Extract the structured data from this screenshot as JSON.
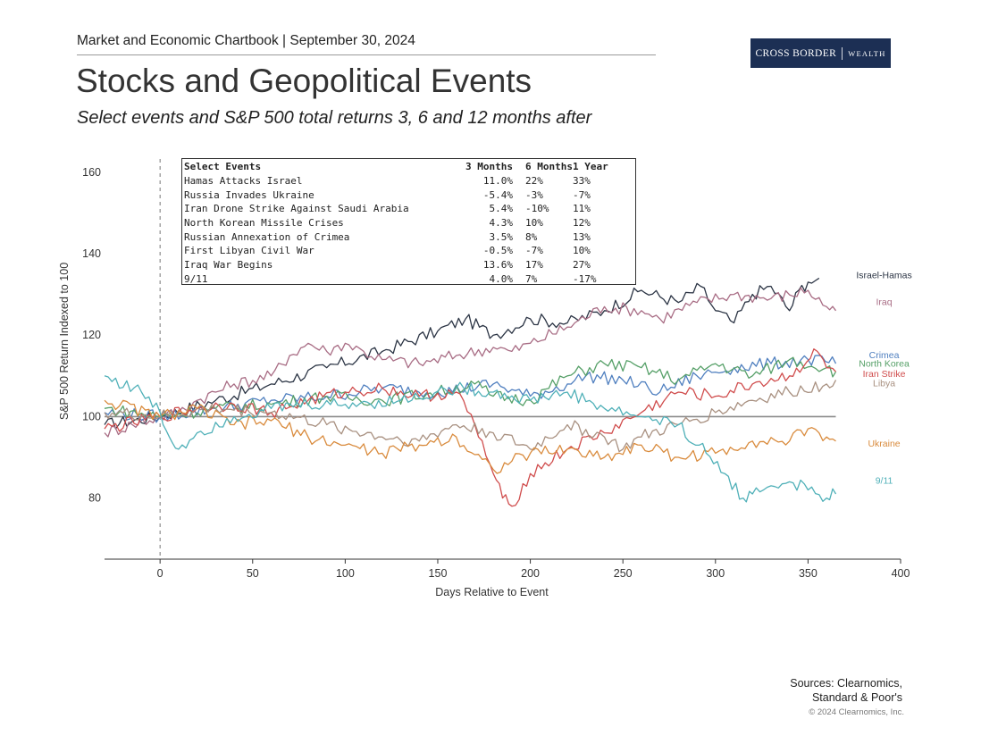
{
  "header": {
    "chartbook": "Market and Economic Chartbook | September 30, 2024",
    "logo_main": "CROSS BORDER",
    "logo_sub": "WEALTH",
    "title": "Stocks and Geopolitical Events",
    "subtitle": "Select events and S&P 500 total returns 3, 6 and 12 months after"
  },
  "footer": {
    "source_line1": "Sources: Clearnomics,",
    "source_line2": "Standard & Poor's",
    "copyright": "© 2024 Clearnomics, Inc."
  },
  "events_table": {
    "headers": [
      "Select Events",
      "3 Months",
      "6 Months",
      "1 Year"
    ],
    "rows": [
      [
        "Hamas Attacks Israel",
        "11.0%",
        "22%",
        "33%"
      ],
      [
        "Russia Invades Ukraine",
        "-5.4%",
        "-3%",
        "-7%"
      ],
      [
        "Iran Drone Strike Against Saudi Arabia",
        "5.4%",
        "-10%",
        "11%"
      ],
      [
        "North Korean Missile Crises",
        "4.3%",
        "10%",
        "12%"
      ],
      [
        "Russian Annexation of Crimea",
        "3.5%",
        "8%",
        "13%"
      ],
      [
        "First Libyan Civil War",
        "-0.5%",
        "-7%",
        "10%"
      ],
      [
        "Iraq War Begins",
        "13.6%",
        "17%",
        "27%"
      ],
      [
        "9/11",
        "4.0%",
        "7%",
        "-17%"
      ]
    ]
  },
  "chart_data": {
    "type": "line",
    "title": "Stocks and Geopolitical Events",
    "xlabel": "Days Relative to Event",
    "ylabel": "S&P 500 Return Indexed to 100",
    "xlim": [
      -30,
      400
    ],
    "ylim": [
      65,
      165
    ],
    "xticks": [
      0,
      50,
      100,
      150,
      200,
      250,
      300,
      350,
      400
    ],
    "yticks": [
      80,
      100,
      120,
      140,
      160
    ],
    "reference_line_y": 100,
    "event_line_x": 0,
    "series": [
      {
        "name": "Israel-Hamas",
        "color": "#2b3444",
        "x": [
          -30,
          0,
          30,
          60,
          90,
          120,
          150,
          165,
          180,
          200,
          220,
          240,
          260,
          280,
          292,
          300,
          310,
          320,
          330,
          340,
          345,
          350,
          356
        ],
        "y": [
          98,
          100,
          104,
          108,
          112,
          116,
          121,
          124,
          120,
          124,
          123,
          126,
          131,
          128,
          132,
          126,
          123,
          130,
          132,
          126,
          131,
          133,
          134
        ]
      },
      {
        "name": "Iraq",
        "color": "#a86c84",
        "x": [
          -30,
          -15,
          0,
          10,
          20,
          40,
          60,
          70,
          80,
          90,
          100,
          110,
          120,
          140,
          160,
          180,
          190,
          200,
          220,
          240,
          260,
          270,
          290,
          310,
          330,
          350,
          360,
          365
        ],
        "y": [
          96,
          98,
          100,
          101,
          104,
          108,
          110,
          115,
          118,
          116,
          118,
          116,
          114,
          113,
          115,
          117,
          116,
          118,
          122,
          127,
          126,
          124,
          128,
          130,
          129,
          131,
          127,
          126
        ]
      },
      {
        "name": "Crimea",
        "color": "#4f7fbf",
        "x": [
          -30,
          0,
          30,
          60,
          90,
          120,
          150,
          180,
          200,
          220,
          230,
          250,
          270,
          290,
          310,
          330,
          350,
          365
        ],
        "y": [
          101,
          100,
          102,
          104,
          105,
          107,
          106,
          108,
          105,
          108,
          110,
          109,
          106,
          110,
          112,
          113,
          114,
          113
        ]
      },
      {
        "name": "North Korea",
        "color": "#56a068",
        "x": [
          -30,
          0,
          30,
          60,
          90,
          120,
          150,
          170,
          180,
          200,
          220,
          240,
          260,
          280,
          300,
          320,
          340,
          360,
          365
        ],
        "y": [
          102,
          100,
          102,
          103,
          105,
          104,
          106,
          108,
          105,
          104,
          110,
          113,
          112,
          109,
          113,
          110,
          114,
          112,
          111
        ]
      },
      {
        "name": "Iran Strike",
        "color": "#d04d4d",
        "x": [
          -30,
          0,
          20,
          40,
          60,
          80,
          100,
          120,
          140,
          160,
          170,
          180,
          185,
          190,
          200,
          220,
          240,
          260,
          280,
          300,
          320,
          340,
          355,
          360,
          365
        ],
        "y": [
          97,
          100,
          102,
          103,
          101,
          104,
          106,
          107,
          105,
          106,
          98,
          86,
          80,
          78,
          86,
          92,
          96,
          101,
          106,
          105,
          108,
          110,
          116,
          112,
          111
        ]
      },
      {
        "name": "Libya",
        "color": "#a89080",
        "x": [
          -30,
          0,
          30,
          60,
          90,
          120,
          140,
          160,
          180,
          200,
          220,
          240,
          250,
          260,
          280,
          300,
          320,
          340,
          360,
          365
        ],
        "y": [
          101,
          100,
          102,
          101,
          98,
          95,
          94,
          98,
          96,
          92,
          98,
          95,
          92,
          95,
          98,
          101,
          104,
          106,
          108,
          109
        ]
      },
      {
        "name": "Ukraine",
        "color": "#d98b3d",
        "x": [
          -30,
          0,
          20,
          40,
          60,
          80,
          100,
          120,
          140,
          160,
          180,
          200,
          220,
          240,
          260,
          280,
          300,
          320,
          340,
          350,
          360,
          365
        ],
        "y": [
          104,
          100,
          102,
          98,
          99,
          95,
          93,
          91,
          93,
          95,
          87,
          91,
          92,
          90,
          93,
          90,
          91,
          94,
          94,
          97,
          95,
          94
        ]
      },
      {
        "name": "9/11",
        "color": "#4fb0b8",
        "x": [
          -30,
          -10,
          0,
          5,
          10,
          20,
          40,
          60,
          80,
          100,
          130,
          160,
          180,
          200,
          220,
          240,
          260,
          280,
          295,
          305,
          315,
          320,
          330,
          340,
          350,
          360,
          365
        ],
        "y": [
          110,
          106,
          101,
          95,
          92,
          96,
          100,
          102,
          103,
          103,
          104,
          107,
          106,
          104,
          106,
          102,
          100,
          98,
          91,
          86,
          80,
          81,
          83,
          84,
          82,
          80,
          81
        ]
      }
    ]
  }
}
